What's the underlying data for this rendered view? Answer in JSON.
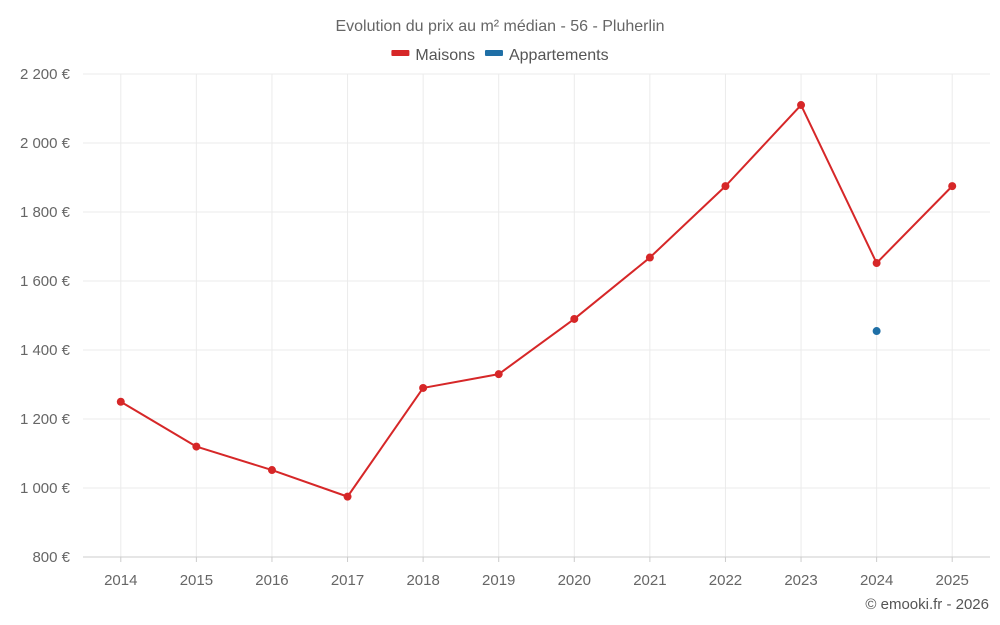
{
  "chart_data": {
    "type": "line",
    "title": "Evolution du prix au m² médian - 56 - Pluherlin",
    "categories": [
      "2014",
      "2015",
      "2016",
      "2017",
      "2018",
      "2019",
      "2020",
      "2021",
      "2022",
      "2023",
      "2024",
      "2025"
    ],
    "series": [
      {
        "name": "Maisons",
        "color": "#d62728",
        "values": [
          1250,
          1120,
          1052,
          975,
          1290,
          1330,
          1490,
          1668,
          1875,
          2110,
          1652,
          1875
        ]
      },
      {
        "name": "Appartements",
        "color": "#1f6fa6",
        "values": [
          null,
          null,
          null,
          null,
          null,
          null,
          null,
          null,
          null,
          null,
          1455,
          null
        ]
      }
    ],
    "ylim": [
      800,
      2200
    ],
    "yticks": [
      800,
      1000,
      1200,
      1400,
      1600,
      1800,
      2000,
      2200
    ],
    "ytick_labels": [
      "800 €",
      "1 000 €",
      "1 200 €",
      "1 400 €",
      "1 600 €",
      "1 800 €",
      "2 000 €",
      "2 200 €"
    ],
    "xlabel": "",
    "ylabel": "",
    "grid": true,
    "legend": "top-center"
  },
  "credit": "© emooki.fr - 2026"
}
